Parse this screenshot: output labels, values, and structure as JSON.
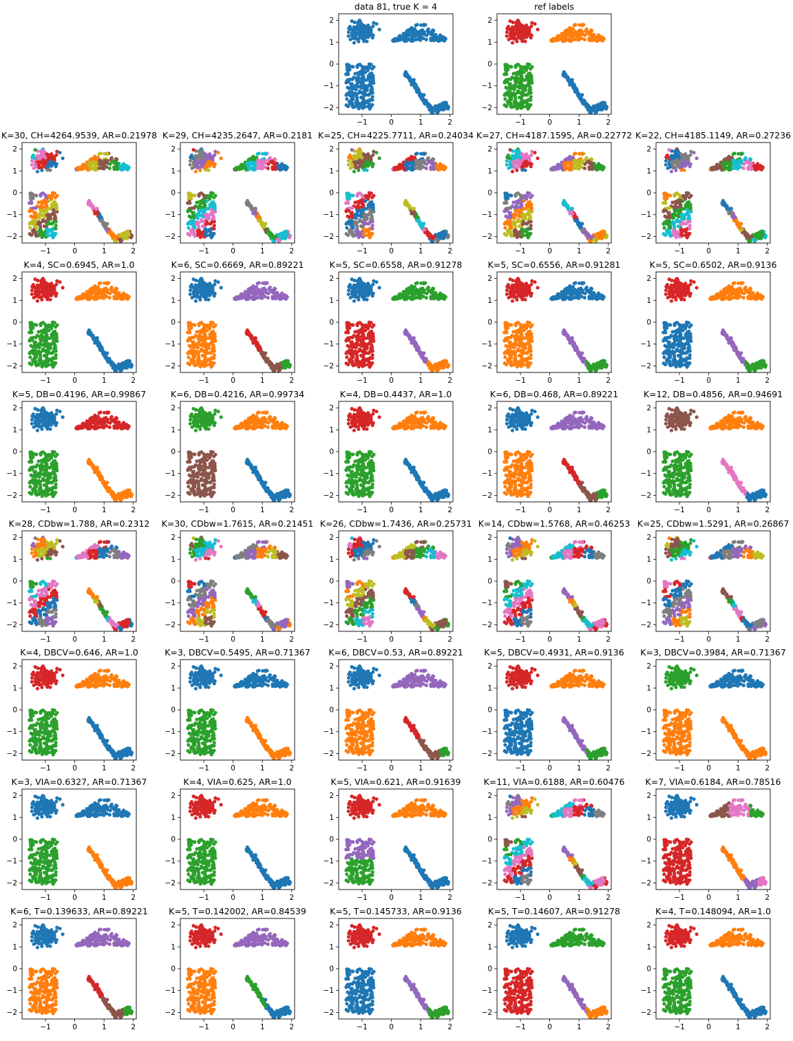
{
  "figure": {
    "rows": 9,
    "cols": 5
  },
  "colors": {
    "blue": "#1f77b4",
    "orange": "#ff7f0e",
    "green": "#2ca02c",
    "red": "#d62728",
    "purple": "#9467bd",
    "brown": "#8c564b",
    "pink": "#e377c2",
    "gray": "#7f7f7f",
    "olive": "#bcbd22",
    "cyan": "#17becf"
  },
  "chart_data": [
    {
      "type": "scatter",
      "row": 0,
      "col": 2,
      "title": "data 81, true K = 4",
      "palette": "single",
      "xticks": [
        -1,
        0,
        1,
        2
      ],
      "yticks": [
        -2,
        -1,
        0,
        1,
        2
      ],
      "xlim": [
        -1.8,
        2.1
      ],
      "ylim": [
        -2.3,
        2.3
      ]
    },
    {
      "type": "scatter",
      "row": 0,
      "col": 3,
      "title": "ref labels",
      "palette": "canonical",
      "xticks": [
        -1,
        0,
        1,
        2
      ],
      "yticks": [
        -2,
        -1,
        0,
        1,
        2
      ],
      "xlim": [
        -1.8,
        2.1
      ],
      "ylim": [
        -2.3,
        2.3
      ]
    },
    {
      "type": "scatter",
      "row": 1,
      "col": 0,
      "title": "K=30, CH=4264.9539, AR=0.21978",
      "palette": "many"
    },
    {
      "type": "scatter",
      "row": 1,
      "col": 1,
      "title": "K=29, CH=4235.2647, AR=0.2181",
      "palette": "many"
    },
    {
      "type": "scatter",
      "row": 1,
      "col": 2,
      "title": "K=25, CH=4225.7711, AR=0.24034",
      "palette": "many"
    },
    {
      "type": "scatter",
      "row": 1,
      "col": 3,
      "title": "K=27, CH=4187.1595, AR=0.22772",
      "palette": "many"
    },
    {
      "type": "scatter",
      "row": 1,
      "col": 4,
      "title": "K=22, CH=4185.1149, AR=0.27236",
      "palette": "many"
    },
    {
      "type": "scatter",
      "row": 2,
      "col": 0,
      "title": "K=4, SC=0.6945, AR=1.0",
      "palette": "canonical"
    },
    {
      "type": "scatter",
      "row": 2,
      "col": 1,
      "title": "K=6, SC=0.6669, AR=0.89221",
      "palette": "six"
    },
    {
      "type": "scatter",
      "row": 2,
      "col": 2,
      "title": "K=5, SC=0.6558, AR=0.91278",
      "palette": "five_a"
    },
    {
      "type": "scatter",
      "row": 2,
      "col": 3,
      "title": "K=5, SC=0.6556, AR=0.91281",
      "palette": "five_b"
    },
    {
      "type": "scatter",
      "row": 2,
      "col": 4,
      "title": "K=5, SC=0.6502, AR=0.9136",
      "palette": "five_c"
    },
    {
      "type": "scatter",
      "row": 3,
      "col": 0,
      "title": "K=5, DB=0.4196, AR=0.99867",
      "palette": "db_a"
    },
    {
      "type": "scatter",
      "row": 3,
      "col": 1,
      "title": "K=6, DB=0.4216, AR=0.99734",
      "palette": "db_b"
    },
    {
      "type": "scatter",
      "row": 3,
      "col": 2,
      "title": "K=4, DB=0.4437, AR=1.0",
      "palette": "canonical"
    },
    {
      "type": "scatter",
      "row": 3,
      "col": 3,
      "title": "K=6, DB=0.468, AR=0.89221",
      "palette": "db_d"
    },
    {
      "type": "scatter",
      "row": 3,
      "col": 4,
      "title": "K=12, DB=0.4856, AR=0.94691",
      "palette": "db_e"
    },
    {
      "type": "scatter",
      "row": 4,
      "col": 0,
      "title": "K=28, CDbw=1.788, AR=0.2312",
      "palette": "many"
    },
    {
      "type": "scatter",
      "row": 4,
      "col": 1,
      "title": "K=30, CDbw=1.7615, AR=0.21451",
      "palette": "many"
    },
    {
      "type": "scatter",
      "row": 4,
      "col": 2,
      "title": "K=26, CDbw=1.7436, AR=0.25731",
      "palette": "many"
    },
    {
      "type": "scatter",
      "row": 4,
      "col": 3,
      "title": "K=14, CDbw=1.5768, AR=0.46253",
      "palette": "many"
    },
    {
      "type": "scatter",
      "row": 4,
      "col": 4,
      "title": "K=25, CDbw=1.5291, AR=0.26867",
      "palette": "many"
    },
    {
      "type": "scatter",
      "row": 5,
      "col": 0,
      "title": "K=4, DBCV=0.646, AR=1.0",
      "palette": "canonical"
    },
    {
      "type": "scatter",
      "row": 5,
      "col": 1,
      "title": "K=3, DBCV=0.5495, AR=0.71367",
      "palette": "three_a"
    },
    {
      "type": "scatter",
      "row": 5,
      "col": 2,
      "title": "K=6, DBCV=0.53, AR=0.89221",
      "palette": "six"
    },
    {
      "type": "scatter",
      "row": 5,
      "col": 3,
      "title": "K=5, DBCV=0.4931, AR=0.9136",
      "palette": "five_c"
    },
    {
      "type": "scatter",
      "row": 5,
      "col": 4,
      "title": "K=3, DBCV=0.3984, AR=0.71367",
      "palette": "three_b"
    },
    {
      "type": "scatter",
      "row": 6,
      "col": 0,
      "title": "K=3, VIA=0.6327, AR=0.71367",
      "palette": "three_a"
    },
    {
      "type": "scatter",
      "row": 6,
      "col": 1,
      "title": "K=4, VIA=0.625, AR=1.0",
      "palette": "canonical"
    },
    {
      "type": "scatter",
      "row": 6,
      "col": 2,
      "title": "K=5, VIA=0.621, AR=0.91639",
      "palette": "via_c"
    },
    {
      "type": "scatter",
      "row": 6,
      "col": 3,
      "title": "K=11, VIA=0.6188, AR=0.60476",
      "palette": "many"
    },
    {
      "type": "scatter",
      "row": 6,
      "col": 4,
      "title": "K=7, VIA=0.6184, AR=0.78516",
      "palette": "via_e"
    },
    {
      "type": "scatter",
      "row": 7,
      "col": 0,
      "title": "K=6, T=0.139633, AR=0.89221",
      "palette": "six"
    },
    {
      "type": "scatter",
      "row": 7,
      "col": 1,
      "title": "K=5, T=0.142002, AR=0.84539",
      "palette": "t_b"
    },
    {
      "type": "scatter",
      "row": 7,
      "col": 2,
      "title": "K=5, T=0.145733, AR=0.9136",
      "palette": "five_c"
    },
    {
      "type": "scatter",
      "row": 7,
      "col": 3,
      "title": "K=5, T=0.14607, AR=0.91278",
      "palette": "t_d"
    },
    {
      "type": "scatter",
      "row": 7,
      "col": 4,
      "title": "K=4, T=0.148094, AR=1.0",
      "palette": "canonical"
    }
  ]
}
